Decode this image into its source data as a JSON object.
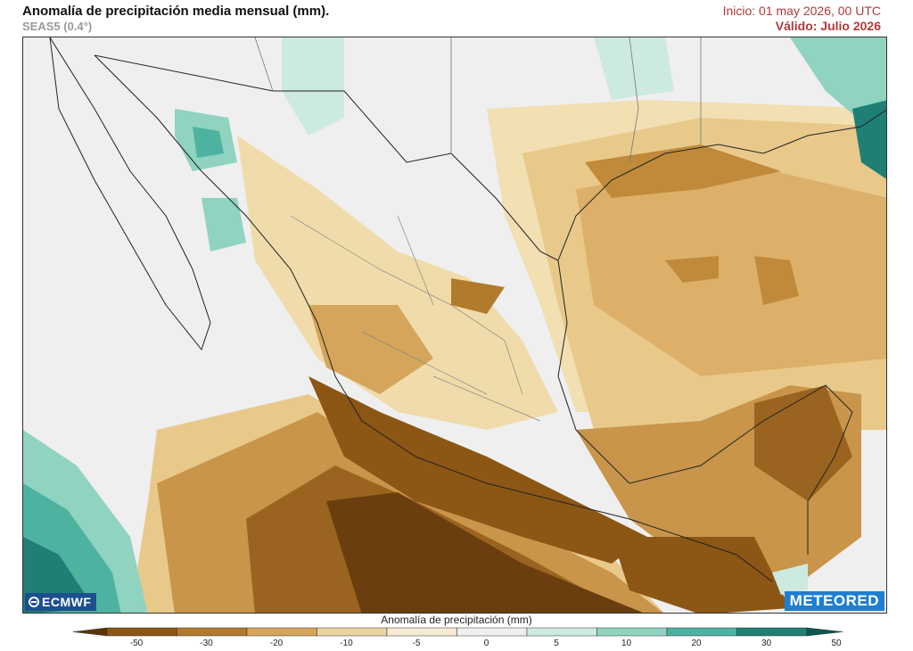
{
  "header": {
    "title": "Anomalía de precipitación media mensual (mm).",
    "model": "SEAS5 (0.4°)",
    "init": "Inicio: 01 may 2026, 00 UTC",
    "valid": "Válido: Julio 2026"
  },
  "logos": {
    "left": "ECMWF",
    "right": "METEORED"
  },
  "colorbar": {
    "title": "Anomalía de precipitación (mm)",
    "ticks": [
      "-50",
      "-30",
      "-20",
      "-10",
      "-5",
      "0",
      "5",
      "10",
      "20",
      "30",
      "50"
    ],
    "colors": [
      "#5b3509",
      "#8c5614",
      "#b27a2c",
      "#d4a55b",
      "#ebd3a0",
      "#f5ebd3",
      "#efefef",
      "#cdeadf",
      "#8fd3c0",
      "#4db3a0",
      "#1f7f75",
      "#08564f"
    ]
  },
  "map": {
    "land_color": "#ececec",
    "region": "México y sur de Estados Unidos"
  }
}
